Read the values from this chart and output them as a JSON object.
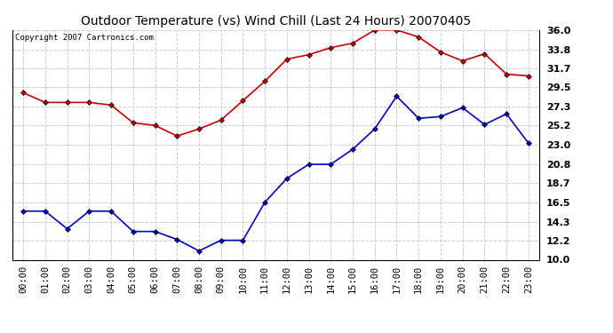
{
  "title": "Outdoor Temperature (vs) Wind Chill (Last 24 Hours) 20070405",
  "copyright": "Copyright 2007 Cartronics.com",
  "hours": [
    "00:00",
    "01:00",
    "02:00",
    "03:00",
    "04:00",
    "05:00",
    "06:00",
    "07:00",
    "08:00",
    "09:00",
    "10:00",
    "11:00",
    "12:00",
    "13:00",
    "14:00",
    "15:00",
    "16:00",
    "17:00",
    "18:00",
    "19:00",
    "20:00",
    "21:00",
    "22:00",
    "23:00"
  ],
  "temp": [
    28.9,
    27.8,
    27.8,
    27.8,
    27.5,
    25.5,
    25.2,
    24.0,
    24.8,
    25.8,
    28.0,
    30.2,
    32.7,
    33.2,
    34.0,
    34.5,
    36.0,
    36.0,
    35.2,
    33.5,
    32.5,
    33.3,
    31.0,
    30.8
  ],
  "windchill": [
    15.5,
    15.5,
    13.5,
    15.5,
    15.5,
    13.2,
    13.2,
    12.3,
    11.0,
    12.2,
    12.2,
    16.5,
    19.2,
    20.8,
    20.8,
    22.5,
    24.8,
    28.5,
    26.0,
    26.2,
    27.2,
    25.3,
    26.5,
    23.2
  ],
  "temp_color": "#cc0000",
  "windchill_color": "#0000cc",
  "bg_color": "#ffffff",
  "grid_color": "#cccccc",
  "ylim": [
    10.0,
    36.0
  ],
  "yticks": [
    10.0,
    12.2,
    14.3,
    16.5,
    18.7,
    20.8,
    23.0,
    25.2,
    27.3,
    29.5,
    31.7,
    33.8,
    36.0
  ],
  "marker": "D",
  "markersize": 3,
  "linewidth": 1.2,
  "title_fontsize": 10,
  "tick_fontsize": 7.5,
  "ytick_fontsize": 8
}
